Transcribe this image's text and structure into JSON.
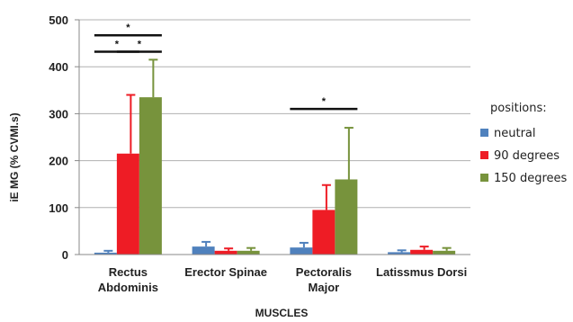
{
  "chart_data": {
    "type": "bar",
    "title": "",
    "xlabel": "MUSCLES",
    "ylabel": "iE MG (% CVMI.s)",
    "ylim": [
      0,
      500
    ],
    "yticks": [
      "0",
      "100",
      "200",
      "300",
      "400",
      "500"
    ],
    "grid": true,
    "legend_title": "positions:",
    "legend_position": "right",
    "categories": [
      [
        "Rectus",
        "Abdominis"
      ],
      [
        "Erector Spinae"
      ],
      [
        "Pectoralis",
        "Major"
      ],
      [
        "Latissmus Dorsi"
      ]
    ],
    "series": [
      {
        "name": "neutral",
        "color": "#4f81bd",
        "values": [
          4,
          17,
          15,
          5
        ],
        "errors": [
          4,
          10,
          10,
          4
        ]
      },
      {
        "name": "90 degrees",
        "color": "#ee1c25",
        "values": [
          215,
          8,
          95,
          10
        ],
        "errors": [
          125,
          5,
          53,
          7
        ]
      },
      {
        "name": "150 degrees",
        "color": "#77933c",
        "values": [
          335,
          8,
          160,
          8
        ],
        "errors": [
          80,
          6,
          110,
          6
        ]
      }
    ],
    "annotations": [
      {
        "type": "significance",
        "label": "*",
        "category": 0,
        "from": 0,
        "to": 2,
        "y": 467
      },
      {
        "type": "significance",
        "label": "*",
        "category": 0,
        "from": 0,
        "to": 1,
        "y": 432
      },
      {
        "type": "significance",
        "label": "*",
        "category": 0,
        "from": 1,
        "to": 2,
        "y": 432
      },
      {
        "type": "significance",
        "label": "*",
        "category": 2,
        "from": 0,
        "to": 2,
        "y": 310
      }
    ]
  }
}
